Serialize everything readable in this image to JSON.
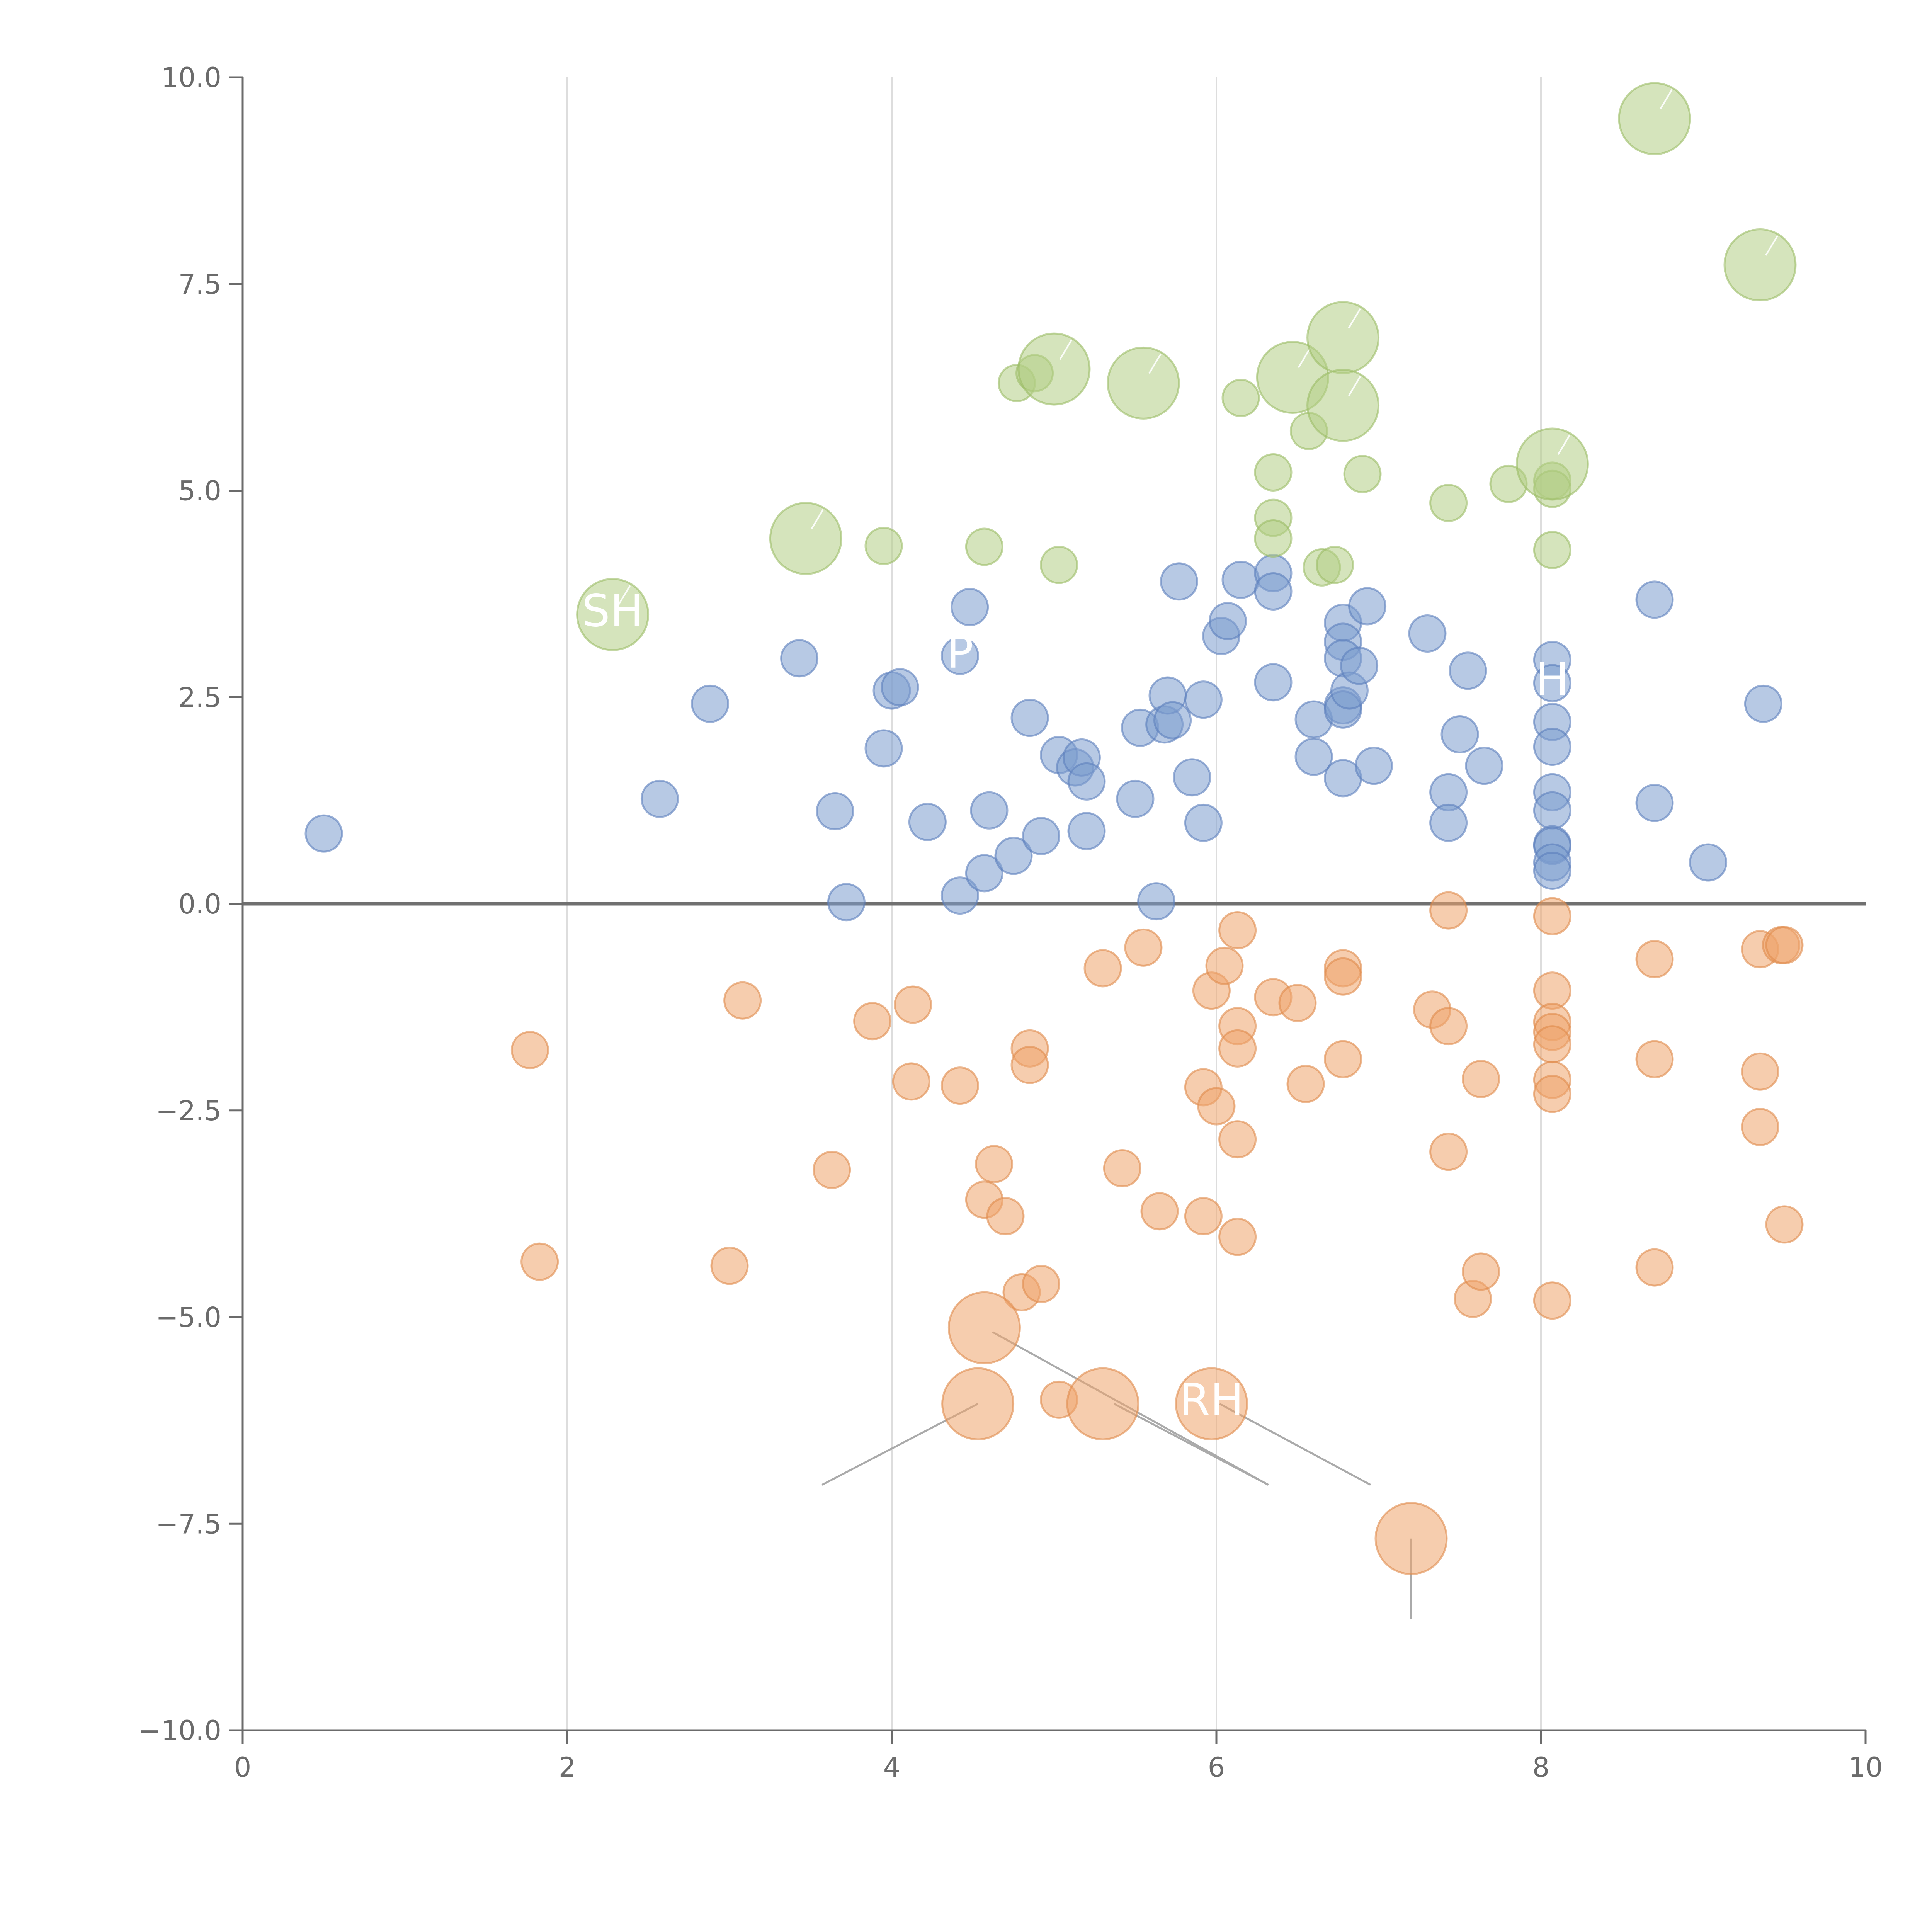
{
  "chart_data": {
    "type": "scatter",
    "title": "",
    "xlabel": "",
    "ylabel": "",
    "xlim": [
      0,
      10
    ],
    "ylim": [
      -10,
      10
    ],
    "x_ticks": [
      0,
      2,
      4,
      6,
      8,
      10
    ],
    "y_ticks": [
      -10.0,
      -7.5,
      -5.0,
      -2.5,
      0.0,
      2.5,
      5.0,
      7.5,
      10.0
    ],
    "x_tick_labels": [
      "0",
      "2",
      "4",
      "6",
      "8",
      "10"
    ],
    "y_tick_labels": [
      "−10.0",
      "−7.5",
      "−5.0",
      "−2.5",
      "0.0",
      "2.5",
      "5.0",
      "7.5",
      "10.0"
    ],
    "grid": "vertical",
    "reference_line_y": 0,
    "colors": {
      "blue": "#7b9ccd",
      "orange": "#eea46c",
      "green": "#b3cd85",
      "blue_edge": "#5b7fbd",
      "orange_edge": "#e08a4b",
      "green_edge": "#9bbd65"
    },
    "series": [
      {
        "name": "blue",
        "color": "#7b9ccd",
        "size": "small",
        "points": [
          [
            0.5,
            0.85
          ],
          [
            2.57,
            1.27
          ],
          [
            2.88,
            2.42
          ],
          [
            3.43,
            2.97
          ],
          [
            3.65,
            1.12
          ],
          [
            3.72,
            0.02
          ],
          [
            3.95,
            1.88
          ],
          [
            4.0,
            2.58
          ],
          [
            4.05,
            2.62
          ],
          [
            4.22,
            0.99
          ],
          [
            4.42,
            3.0
          ],
          [
            4.42,
            0.1
          ],
          [
            4.48,
            3.59
          ],
          [
            4.57,
            0.37
          ],
          [
            4.6,
            1.13
          ],
          [
            4.75,
            0.58
          ],
          [
            4.85,
            2.25
          ],
          [
            4.92,
            0.82
          ],
          [
            5.03,
            1.8
          ],
          [
            5.13,
            1.65
          ],
          [
            5.17,
            1.77
          ],
          [
            5.2,
            1.48
          ],
          [
            5.2,
            0.88
          ],
          [
            5.5,
            1.27
          ],
          [
            5.53,
            2.13
          ],
          [
            5.63,
            0.03
          ],
          [
            5.68,
            2.17
          ],
          [
            5.7,
            2.52
          ],
          [
            5.73,
            2.22
          ],
          [
            5.77,
            3.9
          ],
          [
            5.85,
            1.53
          ],
          [
            5.92,
            2.47
          ],
          [
            5.92,
            0.98
          ],
          [
            6.03,
            3.24
          ],
          [
            6.07,
            3.42
          ],
          [
            6.15,
            3.92
          ],
          [
            6.35,
            4.0
          ],
          [
            6.35,
            3.78
          ],
          [
            6.35,
            2.68
          ],
          [
            6.6,
            2.23
          ],
          [
            6.6,
            1.78
          ],
          [
            6.78,
            3.4
          ],
          [
            6.78,
            3.17
          ],
          [
            6.78,
            2.97
          ],
          [
            6.78,
            2.4
          ],
          [
            6.78,
            2.35
          ],
          [
            6.78,
            1.52
          ],
          [
            6.82,
            2.58
          ],
          [
            6.88,
            2.88
          ],
          [
            6.93,
            3.6
          ],
          [
            6.97,
            1.67
          ],
          [
            7.3,
            3.27
          ],
          [
            7.43,
            1.35
          ],
          [
            7.43,
            0.98
          ],
          [
            7.5,
            2.05
          ],
          [
            7.55,
            2.82
          ],
          [
            7.65,
            1.67
          ],
          [
            8.07,
            2.95
          ],
          [
            8.07,
            2.67
          ],
          [
            8.07,
            2.2
          ],
          [
            8.07,
            1.9
          ],
          [
            8.07,
            1.35
          ],
          [
            8.07,
            1.13
          ],
          [
            8.07,
            0.72
          ],
          [
            8.07,
            0.7
          ],
          [
            8.07,
            0.5
          ],
          [
            8.07,
            0.4
          ],
          [
            8.7,
            3.68
          ],
          [
            8.7,
            1.22
          ],
          [
            9.03,
            0.5
          ],
          [
            9.37,
            2.42
          ]
        ]
      },
      {
        "name": "orange",
        "color": "#eea46c",
        "size": "small",
        "points": [
          [
            1.77,
            -1.77
          ],
          [
            1.83,
            -4.33
          ],
          [
            3.0,
            -4.38
          ],
          [
            3.08,
            -1.17
          ],
          [
            3.63,
            -3.22
          ],
          [
            3.88,
            -1.42
          ],
          [
            4.12,
            -2.15
          ],
          [
            4.13,
            -1.22
          ],
          [
            4.42,
            -2.2
          ],
          [
            4.57,
            -3.58
          ],
          [
            4.63,
            -3.15
          ],
          [
            4.7,
            -3.78
          ],
          [
            4.8,
            -4.7
          ],
          [
            4.85,
            -1.75
          ],
          [
            4.85,
            -1.95
          ],
          [
            4.92,
            -4.6
          ],
          [
            5.03,
            -6.0
          ],
          [
            5.3,
            -0.78
          ],
          [
            5.42,
            -3.2
          ],
          [
            5.55,
            -0.53
          ],
          [
            5.65,
            -3.72
          ],
          [
            5.92,
            -2.22
          ],
          [
            5.92,
            -3.78
          ],
          [
            5.97,
            -1.05
          ],
          [
            6.0,
            -2.45
          ],
          [
            6.05,
            -0.75
          ],
          [
            6.13,
            -0.32
          ],
          [
            6.13,
            -1.48
          ],
          [
            6.13,
            -1.75
          ],
          [
            6.13,
            -2.85
          ],
          [
            6.13,
            -4.03
          ],
          [
            6.35,
            -1.13
          ],
          [
            6.5,
            -1.2
          ],
          [
            6.55,
            -2.18
          ],
          [
            6.78,
            -0.78
          ],
          [
            6.78,
            -0.88
          ],
          [
            6.78,
            -1.88
          ],
          [
            7.33,
            -1.28
          ],
          [
            7.43,
            -0.08
          ],
          [
            7.43,
            -1.48
          ],
          [
            7.43,
            -3.0
          ],
          [
            7.58,
            -4.78
          ],
          [
            7.63,
            -2.12
          ],
          [
            7.63,
            -4.45
          ],
          [
            8.07,
            -0.15
          ],
          [
            8.07,
            -1.05
          ],
          [
            8.07,
            -1.43
          ],
          [
            8.07,
            -1.55
          ],
          [
            8.07,
            -1.7
          ],
          [
            8.07,
            -2.13
          ],
          [
            8.07,
            -2.3
          ],
          [
            8.07,
            -4.8
          ],
          [
            8.7,
            -0.67
          ],
          [
            8.7,
            -1.88
          ],
          [
            8.7,
            -4.4
          ],
          [
            9.35,
            -0.55
          ],
          [
            9.35,
            -2.03
          ],
          [
            9.35,
            -2.7
          ],
          [
            9.48,
            -0.5
          ],
          [
            9.5,
            -0.5
          ],
          [
            9.5,
            -3.88
          ]
        ]
      },
      {
        "name": "orange-large",
        "color": "#eea46c",
        "size": "large",
        "points": [
          [
            4.57,
            -5.13
          ],
          [
            4.53,
            -6.05
          ],
          [
            5.3,
            -6.05
          ],
          [
            5.97,
            -6.05
          ],
          [
            7.2,
            -7.68
          ]
        ]
      },
      {
        "name": "green",
        "color": "#b3cd85",
        "size": "small",
        "points": [
          [
            3.95,
            4.33
          ],
          [
            4.57,
            4.32
          ],
          [
            4.77,
            6.3
          ],
          [
            4.88,
            6.42
          ],
          [
            5.03,
            4.1
          ],
          [
            6.15,
            6.12
          ],
          [
            6.35,
            5.22
          ],
          [
            6.35,
            4.67
          ],
          [
            6.35,
            4.42
          ],
          [
            6.57,
            5.72
          ],
          [
            6.65,
            4.07
          ],
          [
            6.73,
            4.1
          ],
          [
            6.9,
            5.2
          ],
          [
            7.43,
            4.85
          ],
          [
            7.8,
            5.08
          ],
          [
            8.07,
            5.12
          ],
          [
            8.07,
            5.02
          ],
          [
            8.07,
            4.28
          ]
        ]
      },
      {
        "name": "green-large",
        "color": "#b3cd85",
        "size": "large",
        "points": [
          [
            2.28,
            3.5
          ],
          [
            3.47,
            4.42
          ],
          [
            5.0,
            6.47
          ],
          [
            5.55,
            6.3
          ],
          [
            6.47,
            6.37
          ],
          [
            6.78,
            6.85
          ],
          [
            6.78,
            6.03
          ],
          [
            8.07,
            5.32
          ],
          [
            8.7,
            9.5
          ],
          [
            9.35,
            7.73
          ]
        ]
      }
    ],
    "annotations": [
      {
        "text": "SH",
        "anchor": [
          2.28,
          3.5
        ]
      },
      {
        "text": "P",
        "anchor": [
          4.42,
          3.0
        ]
      },
      {
        "text": "H",
        "anchor": [
          8.07,
          2.67
        ]
      },
      {
        "text": "RH",
        "anchor": [
          5.97,
          -6.05
        ]
      }
    ],
    "leader_lines": [
      [
        [
          4.53,
          -6.05
        ],
        [
          3.57,
          -7.03
        ]
      ],
      [
        [
          4.62,
          -5.18
        ],
        [
          6.32,
          -7.03
        ]
      ],
      [
        [
          5.37,
          -6.05
        ],
        [
          6.32,
          -7.03
        ]
      ],
      [
        [
          6.02,
          -6.05
        ],
        [
          6.95,
          -7.03
        ]
      ],
      [
        [
          7.2,
          -7.68
        ],
        [
          7.2,
          -8.65
        ]
      ]
    ]
  }
}
